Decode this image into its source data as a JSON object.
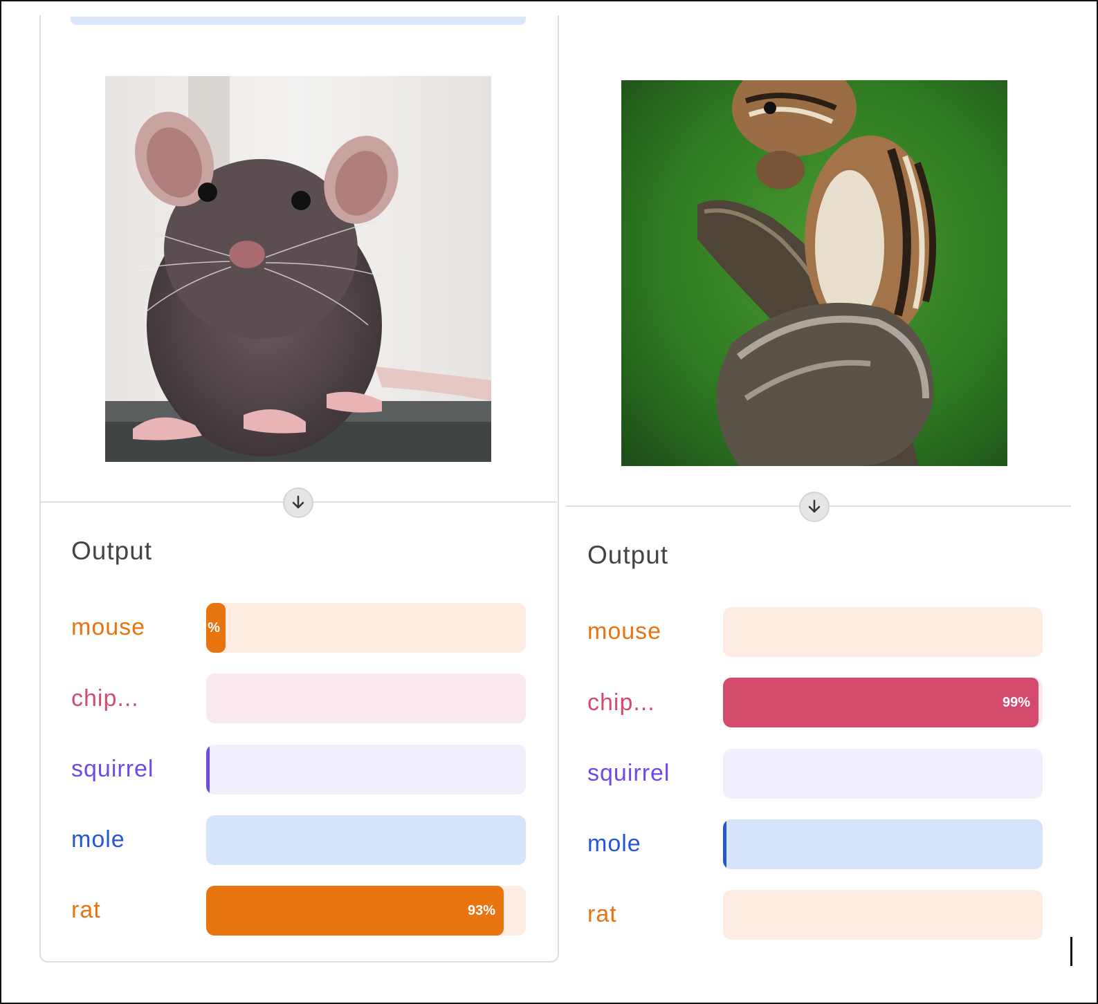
{
  "panels": [
    {
      "image_label": "rat photo",
      "output_title": "Output",
      "predictions": [
        {
          "label": "mouse",
          "percent": 6,
          "pct_text": "%",
          "color": "#e87410",
          "track_color": "#fcece2"
        },
        {
          "label": "chip...",
          "percent": 0,
          "pct_text": "",
          "color": "#d44a6c",
          "track_color": "#f9e8ec"
        },
        {
          "label": "squirrel",
          "percent": 1,
          "pct_text": "",
          "color": "#7048e8",
          "track_color": "#f0effc"
        },
        {
          "label": "mole",
          "percent": 0,
          "pct_text": "",
          "color": "#2457d6",
          "track_color": "#d6e4fb"
        },
        {
          "label": "rat",
          "percent": 93,
          "pct_text": "93%",
          "color": "#e87410",
          "track_color": "#fcece2"
        }
      ]
    },
    {
      "image_label": "chipmunk photo",
      "output_title": "Output",
      "predictions": [
        {
          "label": "mouse",
          "percent": 0,
          "pct_text": "",
          "color": "#e87410",
          "track_color": "#fcece2"
        },
        {
          "label": "chip...",
          "percent": 99,
          "pct_text": "99%",
          "color": "#d44a6c",
          "track_color": "#f9e8ec"
        },
        {
          "label": "squirrel",
          "percent": 0,
          "pct_text": "",
          "color": "#7048e8",
          "track_color": "#f0effc"
        },
        {
          "label": "mole",
          "percent": 1,
          "pct_text": "",
          "color": "#2457d6",
          "track_color": "#d6e4fb"
        },
        {
          "label": "rat",
          "percent": 0,
          "pct_text": "",
          "color": "#e87410",
          "track_color": "#fcece2"
        }
      ]
    }
  ],
  "icons": {
    "arrow": "arrow-down-icon"
  }
}
